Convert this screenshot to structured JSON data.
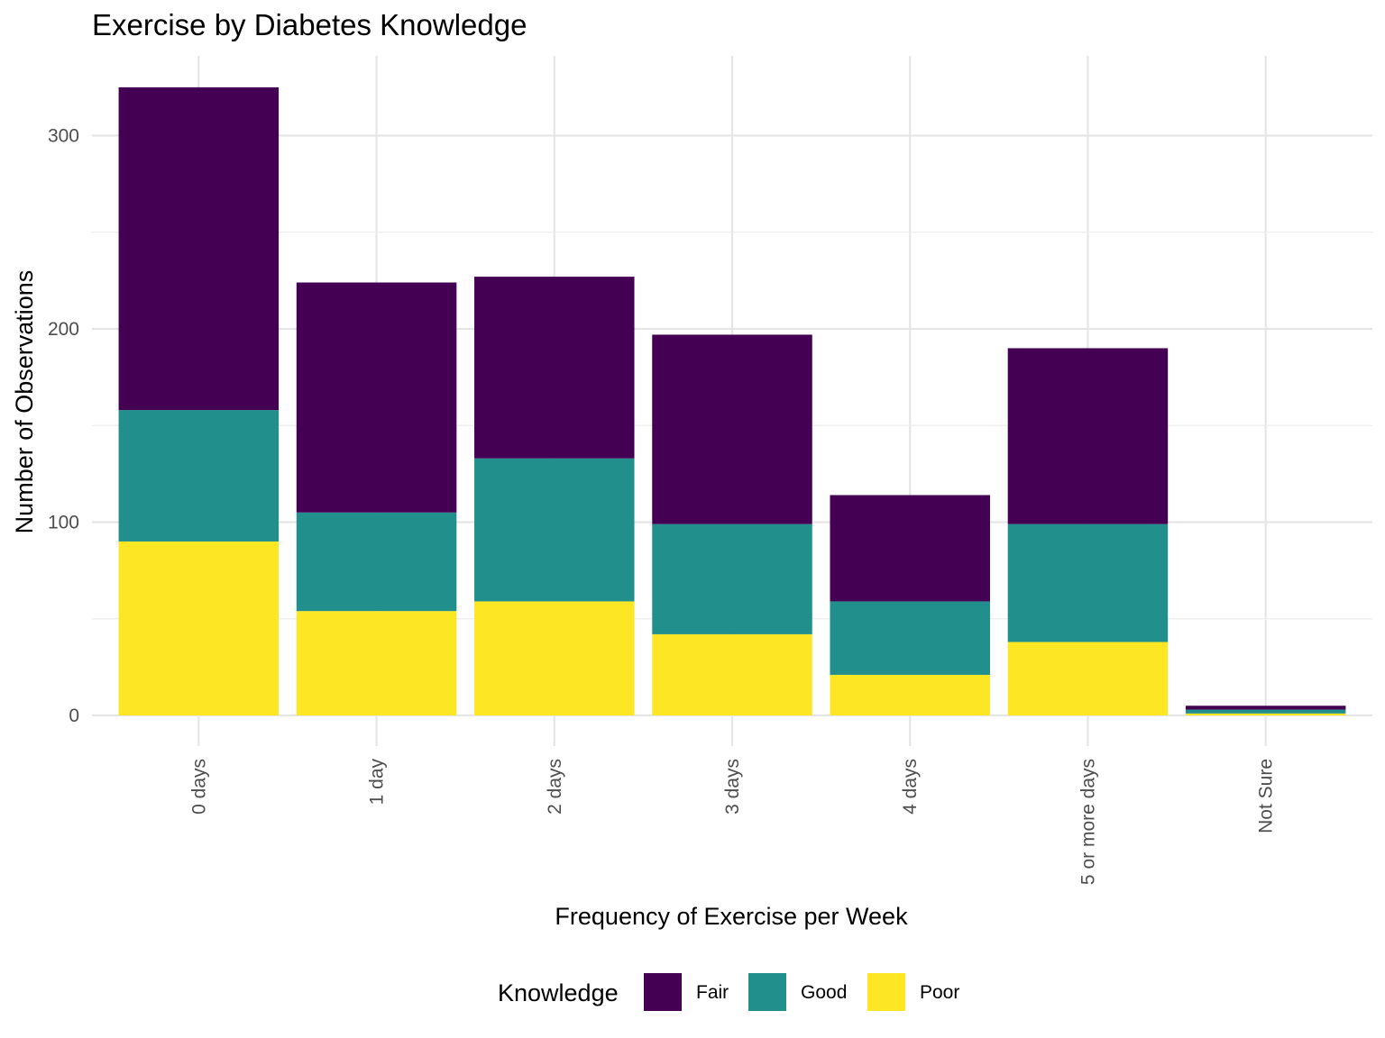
{
  "chart_data": {
    "type": "bar",
    "stacked": true,
    "title": "Exercise by Diabetes Knowledge",
    "xlabel": "Frequency of Exercise per Week",
    "ylabel": "Number of Observations",
    "categories": [
      "0 days",
      "1 day",
      "2 days",
      "3 days",
      "4 days",
      "5 or more days",
      "Not Sure"
    ],
    "series": [
      {
        "name": "Poor",
        "color": "#FDE725",
        "values": [
          90,
          54,
          59,
          42,
          21,
          38,
          1
        ]
      },
      {
        "name": "Good",
        "color": "#21908C",
        "values": [
          68,
          51,
          74,
          57,
          38,
          61,
          2
        ]
      },
      {
        "name": "Fair",
        "color": "#440154",
        "values": [
          167,
          119,
          94,
          98,
          55,
          91,
          2
        ]
      }
    ],
    "ylim": [
      0,
      325
    ],
    "yticks": [
      0,
      100,
      200,
      300
    ],
    "grid": true,
    "legend": {
      "title": "Knowledge",
      "position": "bottom",
      "order": [
        "Fair",
        "Good",
        "Poor"
      ]
    }
  }
}
